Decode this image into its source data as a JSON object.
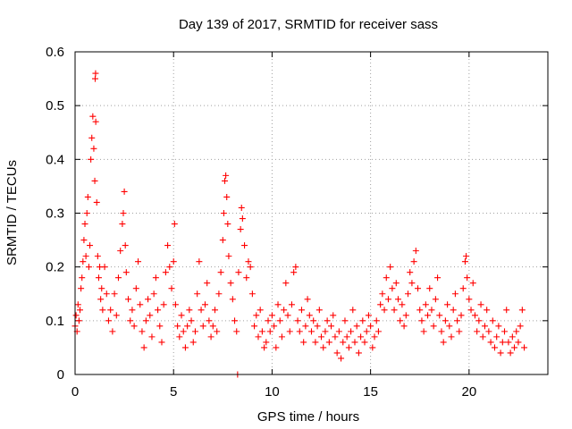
{
  "chart_data": {
    "type": "scatter",
    "title": "Day 139 of 2017, SRMTID for receiver sass",
    "xlabel": "GPS time / hours",
    "ylabel": "SRMTID / TECUs",
    "xlim": [
      0,
      24
    ],
    "ylim": [
      0,
      0.6
    ],
    "xticks": [
      0,
      5,
      10,
      15,
      20
    ],
    "xtick_labels": [
      "0",
      "5",
      "10",
      "15",
      "20"
    ],
    "yticks": [
      0,
      0.1,
      0.2,
      0.3,
      0.4,
      0.5,
      0.6
    ],
    "ytick_labels": [
      "0",
      "0.1",
      "0.2",
      "0.3",
      "0.4",
      "0.5",
      "0.6"
    ],
    "grid": true,
    "marker": "+",
    "color": "#ff0000",
    "series": [
      {
        "name": "SRMTID",
        "points": [
          [
            0.0,
            0.09
          ],
          [
            0.05,
            0.11
          ],
          [
            0.1,
            0.08
          ],
          [
            0.15,
            0.13
          ],
          [
            0.2,
            0.1
          ],
          [
            0.25,
            0.12
          ],
          [
            0.3,
            0.16
          ],
          [
            0.35,
            0.18
          ],
          [
            0.4,
            0.21
          ],
          [
            0.45,
            0.25
          ],
          [
            0.5,
            0.28
          ],
          [
            0.55,
            0.22
          ],
          [
            0.6,
            0.3
          ],
          [
            0.65,
            0.33
          ],
          [
            0.7,
            0.2
          ],
          [
            0.75,
            0.24
          ],
          [
            0.8,
            0.4
          ],
          [
            0.85,
            0.44
          ],
          [
            0.9,
            0.48
          ],
          [
            0.95,
            0.42
          ],
          [
            1.0,
            0.36
          ],
          [
            1.02,
            0.55
          ],
          [
            1.04,
            0.56
          ],
          [
            1.05,
            0.47
          ],
          [
            1.1,
            0.32
          ],
          [
            1.15,
            0.22
          ],
          [
            1.2,
            0.18
          ],
          [
            1.25,
            0.2
          ],
          [
            1.3,
            0.14
          ],
          [
            1.35,
            0.16
          ],
          [
            1.4,
            0.12
          ],
          [
            1.5,
            0.2
          ],
          [
            1.6,
            0.15
          ],
          [
            1.7,
            0.1
          ],
          [
            1.8,
            0.12
          ],
          [
            1.9,
            0.08
          ],
          [
            2.0,
            0.15
          ],
          [
            2.1,
            0.11
          ],
          [
            2.2,
            0.18
          ],
          [
            2.3,
            0.23
          ],
          [
            2.4,
            0.28
          ],
          [
            2.45,
            0.3
          ],
          [
            2.5,
            0.34
          ],
          [
            2.55,
            0.24
          ],
          [
            2.6,
            0.19
          ],
          [
            2.7,
            0.14
          ],
          [
            2.8,
            0.1
          ],
          [
            2.9,
            0.12
          ],
          [
            3.0,
            0.09
          ],
          [
            3.1,
            0.16
          ],
          [
            3.2,
            0.21
          ],
          [
            3.3,
            0.13
          ],
          [
            3.4,
            0.08
          ],
          [
            3.5,
            0.05
          ],
          [
            3.6,
            0.1
          ],
          [
            3.7,
            0.14
          ],
          [
            3.8,
            0.11
          ],
          [
            3.9,
            0.07
          ],
          [
            4.0,
            0.15
          ],
          [
            4.1,
            0.18
          ],
          [
            4.2,
            0.12
          ],
          [
            4.3,
            0.09
          ],
          [
            4.4,
            0.06
          ],
          [
            4.5,
            0.13
          ],
          [
            4.6,
            0.19
          ],
          [
            4.7,
            0.24
          ],
          [
            4.8,
            0.2
          ],
          [
            4.9,
            0.16
          ],
          [
            5.0,
            0.21
          ],
          [
            5.05,
            0.28
          ],
          [
            5.1,
            0.13
          ],
          [
            5.2,
            0.09
          ],
          [
            5.3,
            0.07
          ],
          [
            5.4,
            0.11
          ],
          [
            5.5,
            0.08
          ],
          [
            5.6,
            0.05
          ],
          [
            5.7,
            0.09
          ],
          [
            5.8,
            0.12
          ],
          [
            5.9,
            0.1
          ],
          [
            6.0,
            0.06
          ],
          [
            6.1,
            0.08
          ],
          [
            6.2,
            0.15
          ],
          [
            6.3,
            0.21
          ],
          [
            6.4,
            0.12
          ],
          [
            6.5,
            0.09
          ],
          [
            6.6,
            0.13
          ],
          [
            6.7,
            0.17
          ],
          [
            6.8,
            0.1
          ],
          [
            6.9,
            0.07
          ],
          [
            7.0,
            0.09
          ],
          [
            7.1,
            0.12
          ],
          [
            7.2,
            0.08
          ],
          [
            7.3,
            0.15
          ],
          [
            7.4,
            0.19
          ],
          [
            7.5,
            0.25
          ],
          [
            7.55,
            0.3
          ],
          [
            7.6,
            0.36
          ],
          [
            7.65,
            0.37
          ],
          [
            7.7,
            0.33
          ],
          [
            7.75,
            0.28
          ],
          [
            7.8,
            0.22
          ],
          [
            7.9,
            0.17
          ],
          [
            8.0,
            0.14
          ],
          [
            8.1,
            0.1
          ],
          [
            8.2,
            0.08
          ],
          [
            8.25,
            0.0
          ],
          [
            8.3,
            0.19
          ],
          [
            8.4,
            0.27
          ],
          [
            8.45,
            0.31
          ],
          [
            8.5,
            0.29
          ],
          [
            8.6,
            0.24
          ],
          [
            8.7,
            0.18
          ],
          [
            8.8,
            0.21
          ],
          [
            8.9,
            0.2
          ],
          [
            9.0,
            0.15
          ],
          [
            9.1,
            0.09
          ],
          [
            9.2,
            0.11
          ],
          [
            9.3,
            0.07
          ],
          [
            9.4,
            0.12
          ],
          [
            9.5,
            0.08
          ],
          [
            9.6,
            0.05
          ],
          [
            9.7,
            0.06
          ],
          [
            9.8,
            0.1
          ],
          [
            9.9,
            0.08
          ],
          [
            10.0,
            0.11
          ],
          [
            10.1,
            0.09
          ],
          [
            10.2,
            0.05
          ],
          [
            10.3,
            0.13
          ],
          [
            10.4,
            0.1
          ],
          [
            10.5,
            0.07
          ],
          [
            10.6,
            0.12
          ],
          [
            10.7,
            0.17
          ],
          [
            10.8,
            0.11
          ],
          [
            10.9,
            0.08
          ],
          [
            11.0,
            0.13
          ],
          [
            11.1,
            0.19
          ],
          [
            11.2,
            0.2
          ],
          [
            11.3,
            0.1
          ],
          [
            11.4,
            0.08
          ],
          [
            11.5,
            0.12
          ],
          [
            11.6,
            0.06
          ],
          [
            11.7,
            0.09
          ],
          [
            11.8,
            0.14
          ],
          [
            11.9,
            0.11
          ],
          [
            12.0,
            0.08
          ],
          [
            12.1,
            0.1
          ],
          [
            12.2,
            0.06
          ],
          [
            12.3,
            0.09
          ],
          [
            12.4,
            0.12
          ],
          [
            12.5,
            0.07
          ],
          [
            12.6,
            0.05
          ],
          [
            12.7,
            0.08
          ],
          [
            12.8,
            0.1
          ],
          [
            12.9,
            0.06
          ],
          [
            13.0,
            0.09
          ],
          [
            13.1,
            0.11
          ],
          [
            13.2,
            0.07
          ],
          [
            13.3,
            0.04
          ],
          [
            13.4,
            0.08
          ],
          [
            13.5,
            0.03
          ],
          [
            13.6,
            0.06
          ],
          [
            13.7,
            0.1
          ],
          [
            13.8,
            0.07
          ],
          [
            13.9,
            0.05
          ],
          [
            14.0,
            0.08
          ],
          [
            14.1,
            0.12
          ],
          [
            14.2,
            0.06
          ],
          [
            14.3,
            0.09
          ],
          [
            14.4,
            0.04
          ],
          [
            14.5,
            0.07
          ],
          [
            14.6,
            0.1
          ],
          [
            14.7,
            0.06
          ],
          [
            14.8,
            0.08
          ],
          [
            14.9,
            0.11
          ],
          [
            15.0,
            0.09
          ],
          [
            15.1,
            0.05
          ],
          [
            15.2,
            0.07
          ],
          [
            15.3,
            0.1
          ],
          [
            15.4,
            0.08
          ],
          [
            15.5,
            0.13
          ],
          [
            15.6,
            0.15
          ],
          [
            15.7,
            0.12
          ],
          [
            15.8,
            0.18
          ],
          [
            15.9,
            0.14
          ],
          [
            16.0,
            0.2
          ],
          [
            16.1,
            0.16
          ],
          [
            16.2,
            0.12
          ],
          [
            16.3,
            0.17
          ],
          [
            16.4,
            0.14
          ],
          [
            16.5,
            0.1
          ],
          [
            16.6,
            0.13
          ],
          [
            16.7,
            0.09
          ],
          [
            16.8,
            0.11
          ],
          [
            16.9,
            0.15
          ],
          [
            17.0,
            0.19
          ],
          [
            17.1,
            0.17
          ],
          [
            17.2,
            0.21
          ],
          [
            17.3,
            0.23
          ],
          [
            17.4,
            0.16
          ],
          [
            17.5,
            0.12
          ],
          [
            17.6,
            0.1
          ],
          [
            17.7,
            0.08
          ],
          [
            17.8,
            0.13
          ],
          [
            17.9,
            0.11
          ],
          [
            18.0,
            0.16
          ],
          [
            18.1,
            0.12
          ],
          [
            18.2,
            0.09
          ],
          [
            18.3,
            0.14
          ],
          [
            18.4,
            0.18
          ],
          [
            18.5,
            0.11
          ],
          [
            18.6,
            0.08
          ],
          [
            18.7,
            0.06
          ],
          [
            18.8,
            0.1
          ],
          [
            18.9,
            0.13
          ],
          [
            19.0,
            0.09
          ],
          [
            19.1,
            0.07
          ],
          [
            19.2,
            0.12
          ],
          [
            19.3,
            0.15
          ],
          [
            19.4,
            0.1
          ],
          [
            19.5,
            0.08
          ],
          [
            19.6,
            0.11
          ],
          [
            19.7,
            0.16
          ],
          [
            19.8,
            0.21
          ],
          [
            19.85,
            0.22
          ],
          [
            19.9,
            0.18
          ],
          [
            20.0,
            0.14
          ],
          [
            20.1,
            0.12
          ],
          [
            20.2,
            0.17
          ],
          [
            20.3,
            0.11
          ],
          [
            20.4,
            0.08
          ],
          [
            20.5,
            0.1
          ],
          [
            20.6,
            0.13
          ],
          [
            20.7,
            0.07
          ],
          [
            20.8,
            0.09
          ],
          [
            20.9,
            0.12
          ],
          [
            21.0,
            0.08
          ],
          [
            21.1,
            0.06
          ],
          [
            21.2,
            0.1
          ],
          [
            21.3,
            0.05
          ],
          [
            21.4,
            0.07
          ],
          [
            21.5,
            0.09
          ],
          [
            21.6,
            0.04
          ],
          [
            21.7,
            0.06
          ],
          [
            21.8,
            0.08
          ],
          [
            21.9,
            0.12
          ],
          [
            22.0,
            0.06
          ],
          [
            22.1,
            0.04
          ],
          [
            22.2,
            0.07
          ],
          [
            22.3,
            0.05
          ],
          [
            22.4,
            0.08
          ],
          [
            22.5,
            0.06
          ],
          [
            22.6,
            0.09
          ],
          [
            22.7,
            0.12
          ],
          [
            22.8,
            0.05
          ]
        ]
      }
    ]
  }
}
